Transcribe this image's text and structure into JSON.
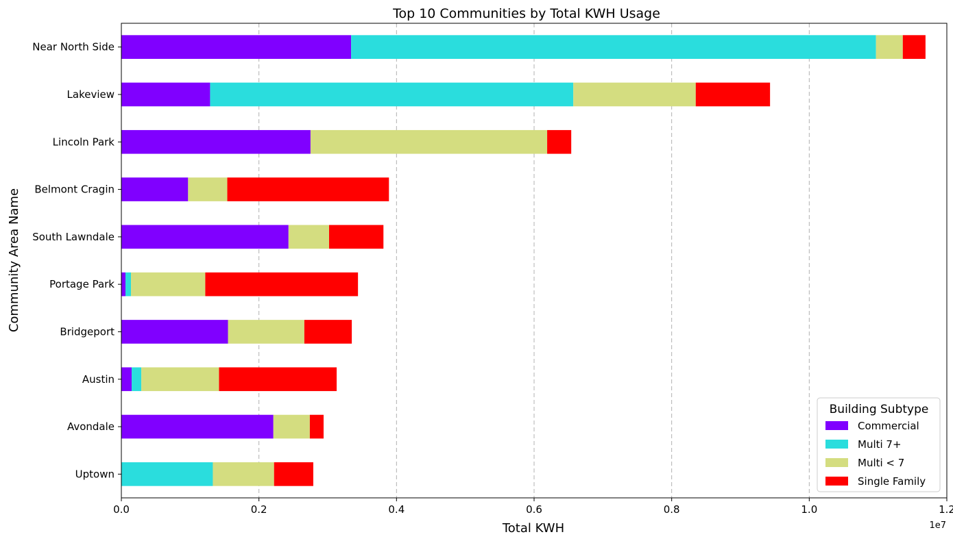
{
  "chart_data": {
    "type": "bar",
    "orientation": "horizontal",
    "stacked": true,
    "title": "Top 10 Communities by Total KWH Usage",
    "xlabel": "Total KWH",
    "ylabel": "Community Area Name",
    "x_offset_label": "1e7",
    "xlim": [
      0,
      1.2
    ],
    "x_ticks": [
      0.0,
      0.2,
      0.4,
      0.6,
      0.8,
      1.0,
      1.2
    ],
    "x_tick_labels": [
      "0.0",
      "0.2",
      "0.4",
      "0.6",
      "0.8",
      "1.0",
      "1.2"
    ],
    "grid": "x-axis dashed",
    "legend_position": "lower-right",
    "legend_title": "Building Subtype",
    "categories": [
      "Near North Side",
      "Lakeview",
      "Lincoln Park",
      "Belmont Cragin",
      "South Lawndale",
      "Portage Park",
      "Bridgeport",
      "Austin",
      "Avondale",
      "Uptown"
    ],
    "series": [
      {
        "name": "Commercial",
        "color": "#8000ff",
        "values": [
          0.334,
          0.129,
          0.275,
          0.097,
          0.243,
          0.006,
          0.155,
          0.015,
          0.221,
          0.0
        ]
      },
      {
        "name": "Multi 7+",
        "color": "#2adddd",
        "values": [
          0.763,
          0.528,
          0.0,
          0.0,
          0.0,
          0.008,
          0.0,
          0.014,
          0.0,
          0.133
        ]
      },
      {
        "name": "Multi < 7",
        "color": "#d4dd80",
        "values": [
          0.039,
          0.178,
          0.344,
          0.057,
          0.059,
          0.108,
          0.111,
          0.113,
          0.053,
          0.089
        ]
      },
      {
        "name": "Single Family",
        "color": "#ff0000",
        "values": [
          0.033,
          0.108,
          0.035,
          0.235,
          0.079,
          0.222,
          0.069,
          0.171,
          0.02,
          0.057
        ]
      }
    ]
  }
}
